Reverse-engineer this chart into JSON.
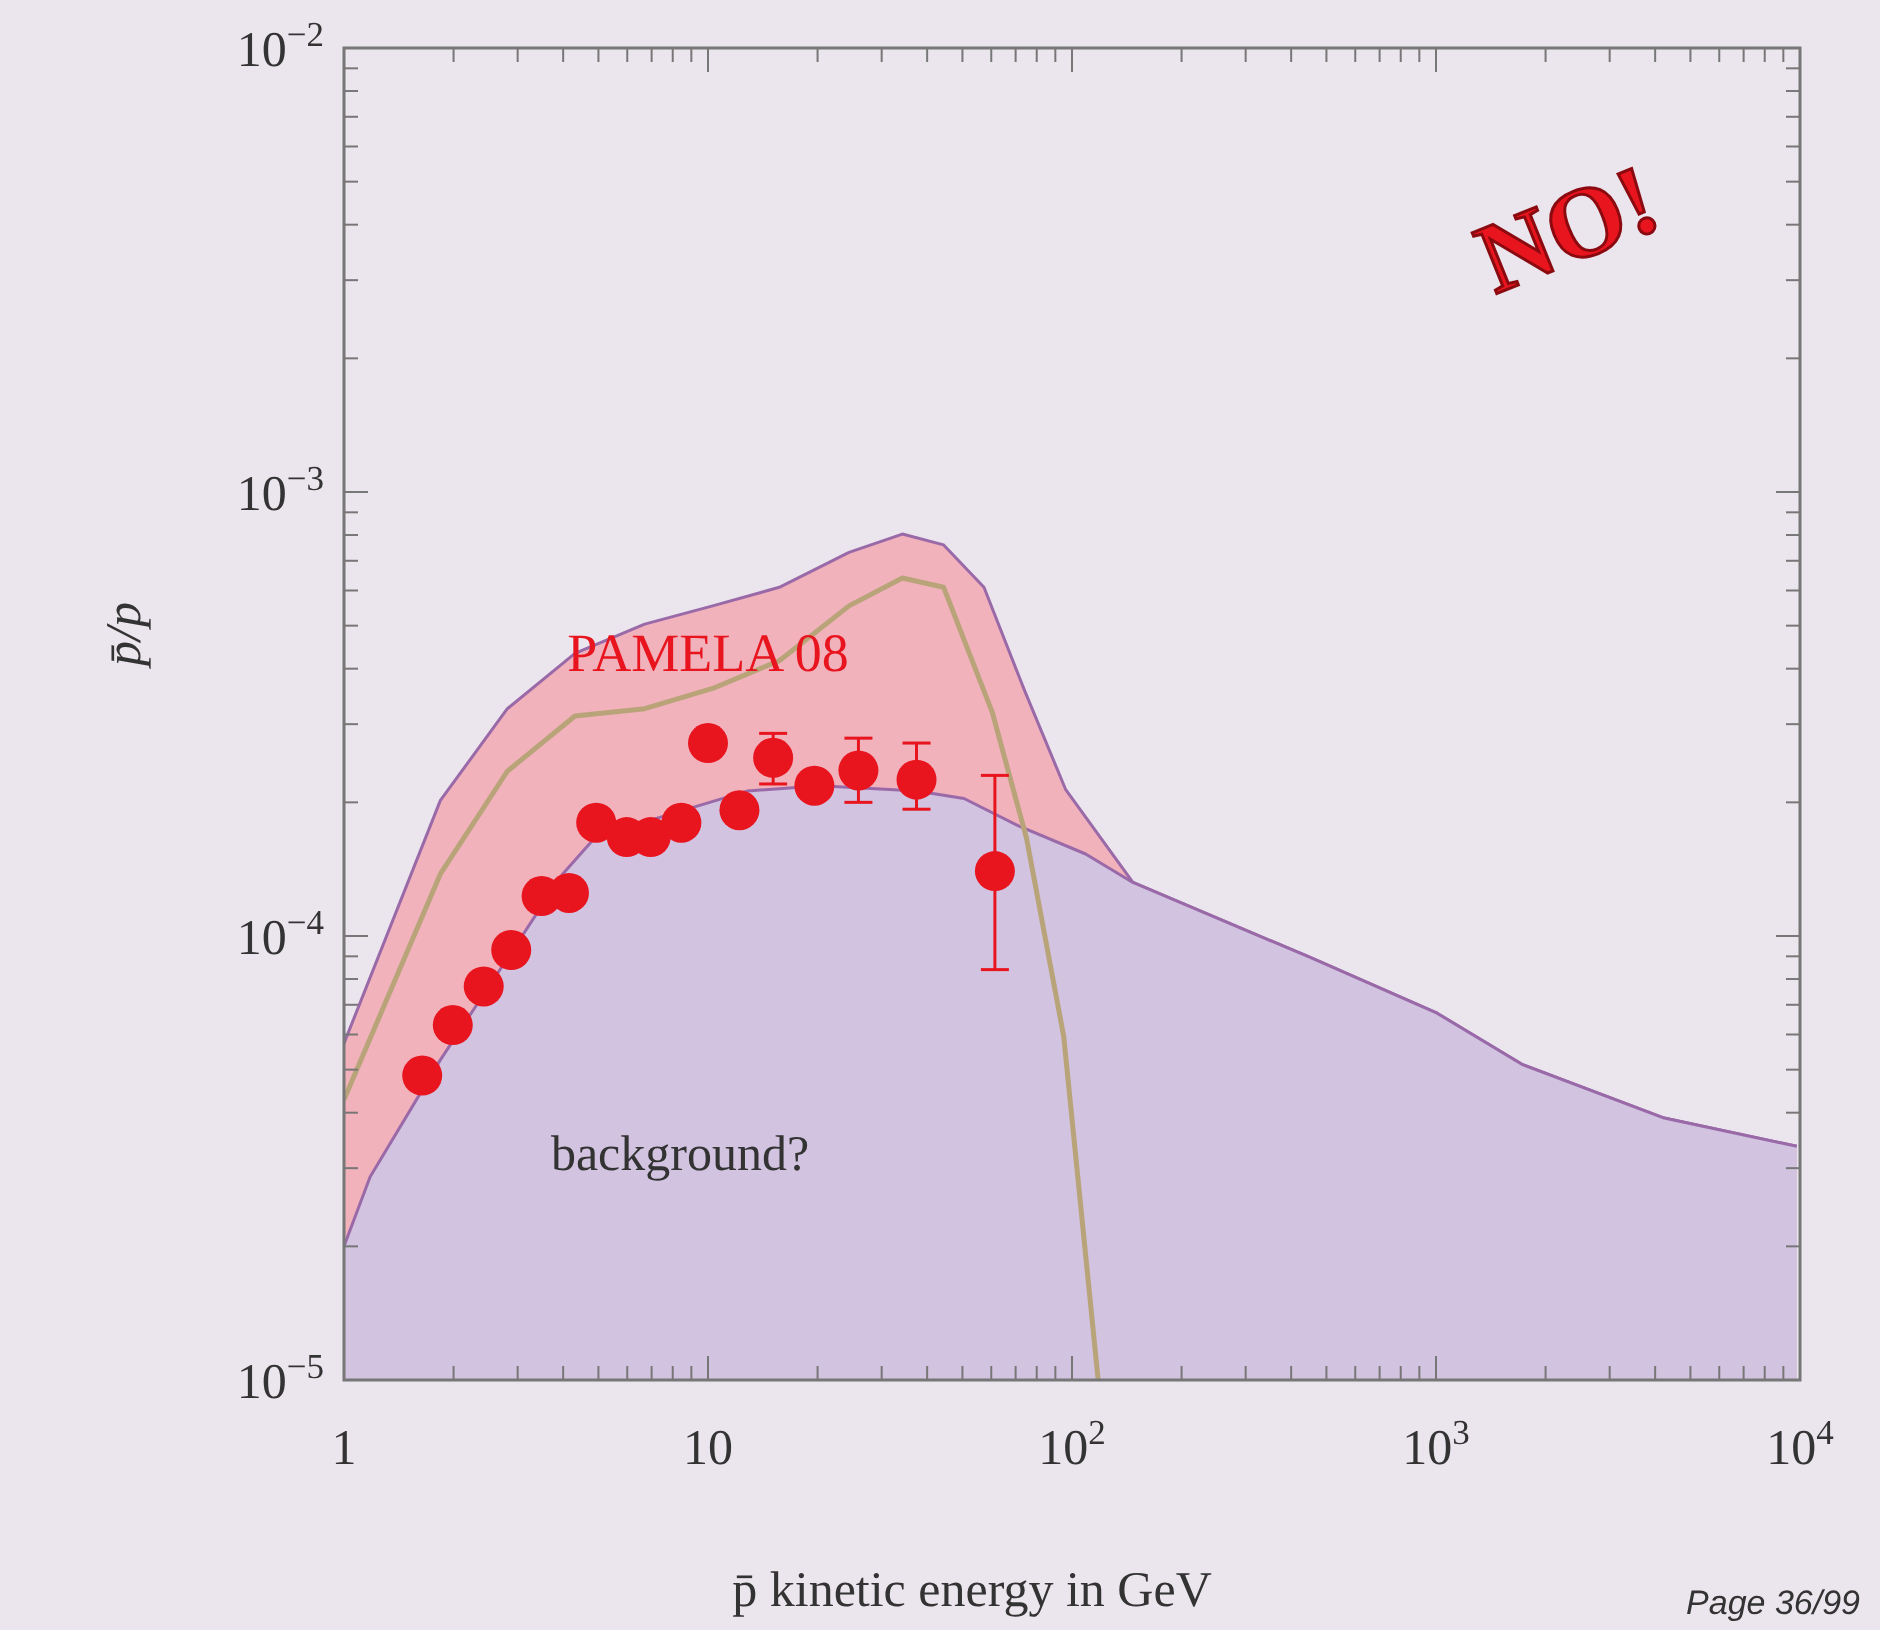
{
  "chart_data": {
    "type": "scatter",
    "log": "xy",
    "xlabel": "p̄ kinetic energy in GeV",
    "ylabel": "p̄/p",
    "xlim": [
      1,
      10000
    ],
    "ylim": [
      1e-05,
      0.01
    ],
    "xticks": [
      {
        "value": 1,
        "label": "1"
      },
      {
        "value": 10,
        "label": "10"
      },
      {
        "value": 100,
        "label": "10$^{2}$"
      },
      {
        "value": 1000,
        "label": "10$^{3}$"
      },
      {
        "value": 10000,
        "label": "10$^{4}$"
      },
      {
        "value": 2,
        "label": null
      },
      {
        "value": 3,
        "label": null
      },
      {
        "value": 4,
        "label": null
      },
      {
        "value": 5,
        "label": null
      },
      {
        "value": 6,
        "label": null
      },
      {
        "value": 7,
        "label": null
      },
      {
        "value": 8,
        "label": null
      },
      {
        "value": 9,
        "label": null
      },
      {
        "value": 20,
        "label": null
      },
      {
        "value": 30,
        "label": null
      },
      {
        "value": 40,
        "label": null
      },
      {
        "value": 50,
        "label": null
      },
      {
        "value": 60,
        "label": null
      },
      {
        "value": 70,
        "label": null
      },
      {
        "value": 80,
        "label": null
      },
      {
        "value": 90,
        "label": null
      },
      {
        "value": 200,
        "label": null
      },
      {
        "value": 300,
        "label": null
      },
      {
        "value": 400,
        "label": null
      },
      {
        "value": 500,
        "label": null
      },
      {
        "value": 600,
        "label": null
      },
      {
        "value": 700,
        "label": null
      },
      {
        "value": 800,
        "label": null
      },
      {
        "value": 900,
        "label": null
      },
      {
        "value": 2000,
        "label": null
      },
      {
        "value": 3000,
        "label": null
      },
      {
        "value": 4000,
        "label": null
      },
      {
        "value": 5000,
        "label": null
      },
      {
        "value": 6000,
        "label": null
      },
      {
        "value": 7000,
        "label": null
      },
      {
        "value": 8000,
        "label": null
      },
      {
        "value": 9000,
        "label": null
      }
    ],
    "yticks": [
      {
        "value": 1e-05,
        "label": "10$^{−5}$"
      },
      {
        "value": 0.0001,
        "label": "10$^{−4}$"
      },
      {
        "value": 0.001,
        "label": "10$^{−3}$"
      },
      {
        "value": 0.01,
        "label": "10$^{−2}$"
      },
      {
        "value": 2e-05,
        "label": null
      },
      {
        "value": 3e-05,
        "label": null
      },
      {
        "value": 4e-05,
        "label": null
      },
      {
        "value": 5e-05,
        "label": null
      },
      {
        "value": 6e-05,
        "label": null
      },
      {
        "value": 7e-05,
        "label": null
      },
      {
        "value": 8e-05,
        "label": null
      },
      {
        "value": 9e-05,
        "label": null
      },
      {
        "value": 0.0002,
        "label": null
      },
      {
        "value": 0.0003,
        "label": null
      },
      {
        "value": 0.0004,
        "label": null
      },
      {
        "value": 0.0005,
        "label": null
      },
      {
        "value": 0.0006,
        "label": null
      },
      {
        "value": 0.0007,
        "label": null
      },
      {
        "value": 0.0008,
        "label": null
      },
      {
        "value": 0.0009,
        "label": null
      },
      {
        "value": 0.002,
        "label": null
      },
      {
        "value": 0.003,
        "label": null
      },
      {
        "value": 0.004,
        "label": null
      },
      {
        "value": 0.005,
        "label": null
      },
      {
        "value": 0.006,
        "label": null
      },
      {
        "value": 0.007,
        "label": null
      },
      {
        "value": 0.008,
        "label": null
      },
      {
        "value": 0.009,
        "label": null
      }
    ],
    "grid": false,
    "series": [
      {
        "type": "area",
        "color": "#f2a9b3",
        "x": [
          1,
          1.84,
          2.81,
          4.31,
          6.7,
          10.3,
          15.7,
          24.4,
          34.2,
          44.4,
          57.3,
          74,
          96,
          147,
          448,
          1007,
          1722,
          4237,
          9800
        ],
        "values": [
          5.73e-05,
          0.000202,
          0.000325,
          0.000433,
          0.000504,
          0.000554,
          0.00061,
          0.000731,
          0.000804,
          0.00076,
          0.00061,
          0.000358,
          0.000214,
          0.000132,
          8.97e-05,
          6.7e-05,
          5.14e-05,
          3.89e-05,
          3.36e-05
        ]
      },
      {
        "type": "area",
        "color": "#cdc6e6",
        "x": [
          1,
          1.18,
          1.84,
          2.81,
          3.99,
          4.91,
          7.22,
          12.8,
          20.3,
          37.5,
          50.5,
          71.3,
          109,
          147,
          448,
          1007,
          1722,
          4237,
          9800
        ],
        "values": [
          2e-05,
          2.87e-05,
          5.26e-05,
          8.9e-05,
          0.000138,
          0.000167,
          0.000184,
          0.000212,
          0.000218,
          0.000212,
          0.000204,
          0.000177,
          0.000153,
          0.000132,
          8.97e-05,
          6.7e-05,
          5.14e-05,
          3.89e-05,
          3.36e-05
        ]
      },
      {
        "type": "line",
        "color": "#b9a47a",
        "x": [
          1,
          1.84,
          2.81,
          4.31,
          6.7,
          10.3,
          15.7,
          24.4,
          34.2,
          44.4,
          60.4,
          75,
          94.9,
          118
        ],
        "values": [
          4.28e-05,
          0.000138,
          0.000235,
          0.000313,
          0.000325,
          0.000361,
          0.000417,
          0.000554,
          0.00064,
          0.00061,
          0.000319,
          0.000166,
          5.94e-05,
          1e-05
        ]
      },
      {
        "marker": "circle",
        "name": "PAMELA 08",
        "color": "#e8141e",
        "x": [
          1.64,
          1.99,
          2.42,
          2.88,
          3.49,
          4.15,
          4.93,
          5.98,
          6.96,
          8.45,
          10,
          12.2,
          15.1,
          19.6,
          25.9,
          37.4,
          61.4
        ],
        "values": [
          4.85e-05,
          6.3e-05,
          7.7e-05,
          9.3e-05,
          0.000123,
          0.000125,
          0.00018,
          0.000167,
          0.000167,
          0.00018,
          0.000272,
          0.000192,
          0.000252,
          0.000218,
          0.000236,
          0.000225,
          0.00014
        ],
        "errors": [
          null,
          null,
          null,
          null,
          null,
          null,
          null,
          null,
          null,
          null,
          null,
          null,
          [
            0.00022,
            0.000286
          ],
          null,
          [
            0.0002,
            0.000279
          ],
          [
            0.000193,
            0.000272
          ],
          [
            8.4e-05,
            0.00023
          ]
        ]
      }
    ],
    "annotations": [
      "background?",
      "NO!",
      "Page 36/99"
    ]
  }
}
